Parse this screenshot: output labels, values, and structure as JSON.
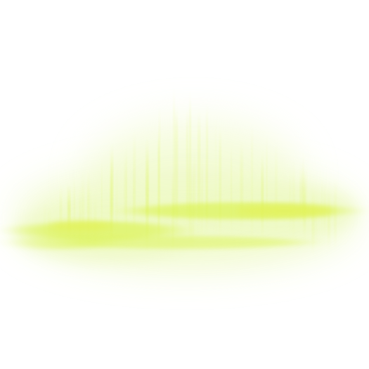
{
  "image": {
    "background_color": "#ffffff",
    "glow_color": "#d8f23a",
    "glow_core_color": "#e4f25a",
    "haze_color": "#eef9c4"
  }
}
